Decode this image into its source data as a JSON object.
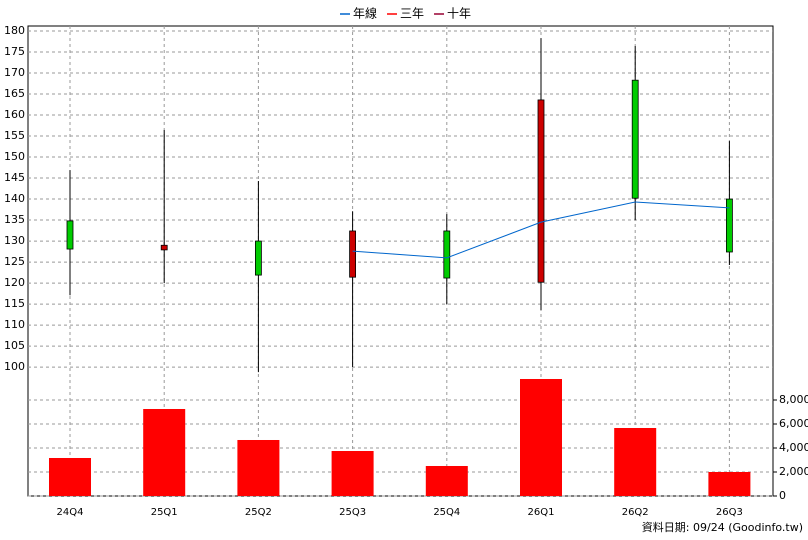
{
  "chart_data": {
    "type": "candlestick",
    "categories": [
      "24Q4",
      "25Q1",
      "25Q2",
      "25Q3",
      "25Q4",
      "26Q1",
      "26Q2",
      "26Q3"
    ],
    "open": [
      134.8,
      127.9,
      130.0,
      121.4,
      132.4,
      120.2,
      168.3,
      140.0
    ],
    "high": [
      146.9,
      156.4,
      144.3,
      137.1,
      136.4,
      178.3,
      176.4,
      153.8
    ],
    "low": [
      117.1,
      120.0,
      98.8,
      100.0,
      115.0,
      113.6,
      135.0,
      124.3
    ],
    "close": [
      128.1,
      129.0,
      121.9,
      132.4,
      121.2,
      163.6,
      140.2,
      127.4
    ],
    "up_color": "#cc0000",
    "down_color": "#00cc00",
    "series": [
      {
        "name": "年線",
        "color": "#0066cc",
        "values": [
          null,
          null,
          null,
          127.6,
          126.0,
          134.5,
          139.3,
          137.9
        ]
      },
      {
        "name": "三年",
        "color": "#ff0000",
        "values": [
          null,
          null,
          null,
          null,
          null,
          null,
          null,
          null
        ]
      },
      {
        "name": "十年",
        "color": "#990033",
        "values": [
          null,
          null,
          null,
          null,
          null,
          null,
          null,
          null
        ]
      }
    ],
    "ylim": [
      97.4,
      181.2
    ],
    "yticks": [
      100,
      105,
      110,
      115,
      120,
      125,
      130,
      135,
      140,
      145,
      150,
      155,
      160,
      165,
      170,
      175,
      180
    ],
    "grid": true,
    "volume": {
      "color": "#ff0000",
      "values": [
        3167,
        7250,
        4667,
        3750,
        2500,
        9750,
        5667,
        2000
      ],
      "ylim": [
        0,
        9833
      ],
      "yticks": [
        0,
        {
          "value": 2000,
          "label": "2,000"
        },
        {
          "value": 4000,
          "label": "4,000"
        },
        {
          "value": 6000,
          "label": "6,000"
        },
        {
          "value": 8000,
          "label": "8,000"
        }
      ]
    }
  },
  "footer": "資料日期: 09/24  (Goodinfo.tw)"
}
